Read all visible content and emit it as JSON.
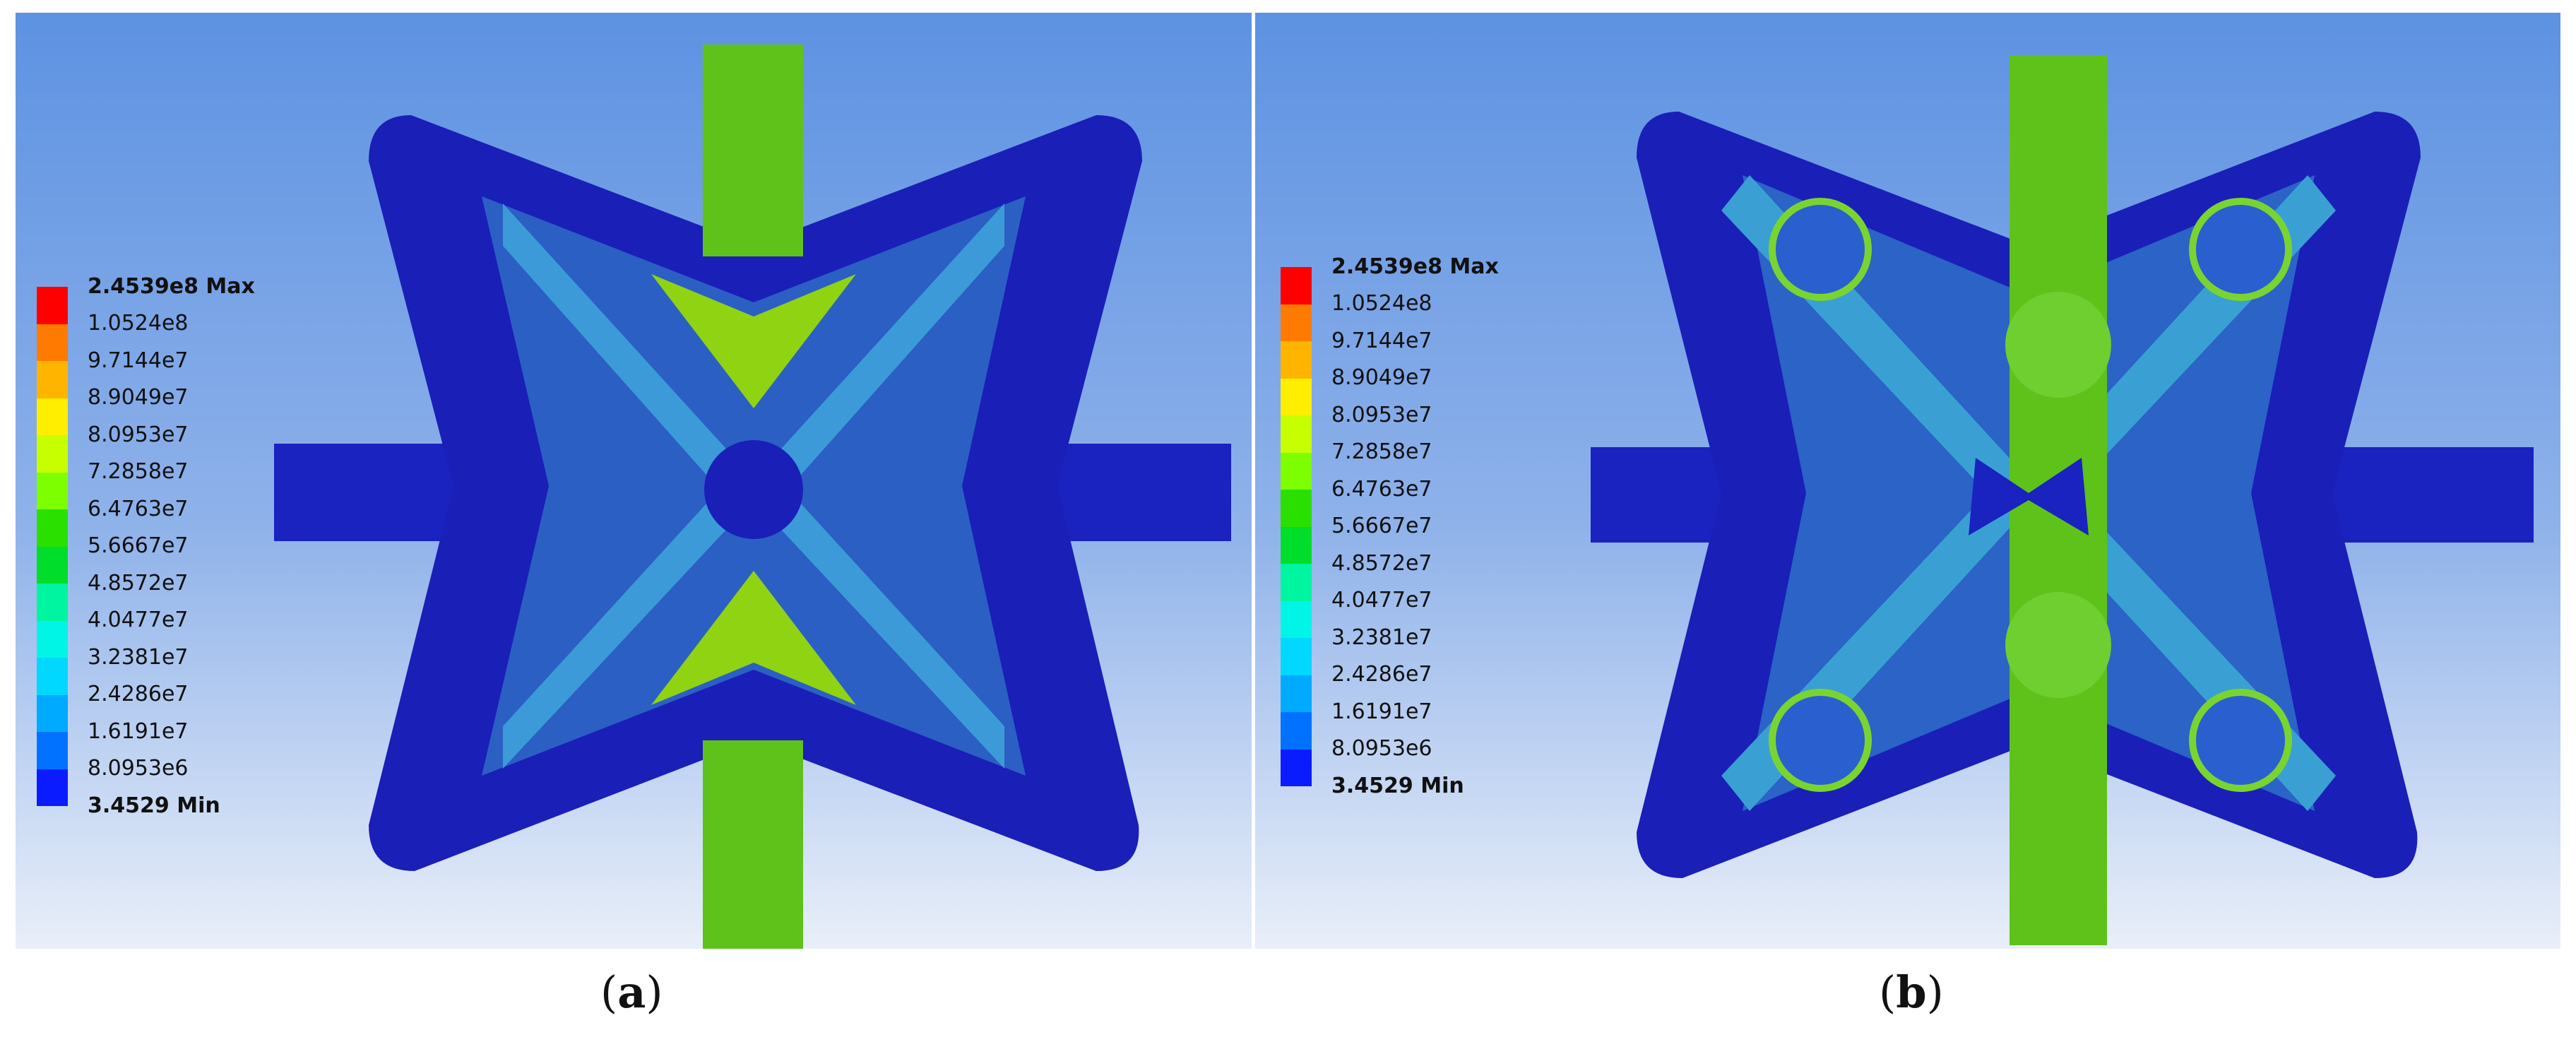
{
  "legend": {
    "max_label": "2.4539e8 Max",
    "min_label": "3.4529 Min",
    "levels": [
      {
        "label": "1.0524e8",
        "color": "#ff0000"
      },
      {
        "label": "9.7144e7",
        "color": "#ff7a00"
      },
      {
        "label": "8.9049e7",
        "color": "#ffb400"
      },
      {
        "label": "8.0953e7",
        "color": "#ffee00"
      },
      {
        "label": "7.2858e7",
        "color": "#c8ff00"
      },
      {
        "label": "6.4763e7",
        "color": "#7dff00"
      },
      {
        "label": "5.6667e7",
        "color": "#2ae000"
      },
      {
        "label": "4.8572e7",
        "color": "#00dd2a"
      },
      {
        "label": "4.0477e7",
        "color": "#00f5a0"
      },
      {
        "label": "3.2381e7",
        "color": "#00f5e6"
      },
      {
        "label": "2.4286e7",
        "color": "#00d8ff"
      },
      {
        "label": "1.6191e7",
        "color": "#00aaff"
      },
      {
        "label": "8.0953e6",
        "color": "#0072ff"
      },
      {
        "label": "",
        "color": "#0a1cff"
      }
    ]
  },
  "panels": [
    {
      "caption_open": "(",
      "caption_letter": "a",
      "caption_close": ")"
    },
    {
      "caption_open": "(",
      "caption_letter": "b",
      "caption_close": ")"
    }
  ],
  "colors": {
    "background_top": "#5d92e2",
    "background_bottom": "#e9eff9",
    "frame_blue": "#1a1fb8",
    "inner_blue": "#2b63c7",
    "rod_green": "#5ec21a"
  }
}
